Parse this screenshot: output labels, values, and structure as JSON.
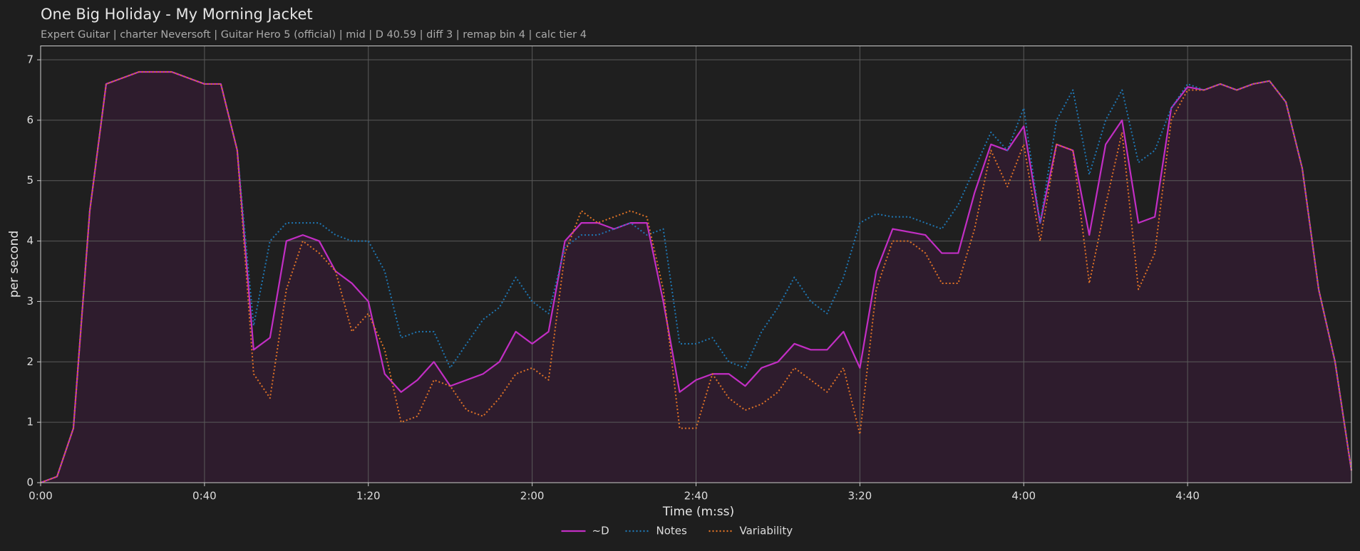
{
  "chart_data": {
    "type": "line",
    "title": "One Big Holiday - My Morning Jacket",
    "subtitle": "Expert Guitar  |  charter Neversoft  |  Guitar Hero 5 (official)  |  mid  |  D 40.59  |  diff 3  |  remap bin 4  |  calc tier 4",
    "x_label": "Time (m:ss)",
    "y_label": "per second",
    "x": [
      0,
      4,
      8,
      12,
      16,
      20,
      24,
      28,
      32,
      36,
      40,
      44,
      48,
      52,
      56,
      60,
      64,
      68,
      72,
      76,
      80,
      84,
      88,
      92,
      96,
      100,
      104,
      108,
      112,
      116,
      120,
      124,
      128,
      132,
      136,
      140,
      144,
      148,
      152,
      156,
      160,
      164,
      168,
      172,
      176,
      180,
      184,
      188,
      192,
      196,
      200,
      204,
      208,
      212,
      216,
      220,
      224,
      228,
      232,
      236,
      240,
      244,
      248,
      252,
      256,
      260,
      264,
      268,
      272,
      276,
      280,
      284,
      288,
      292,
      296,
      300,
      304,
      308,
      312,
      316,
      320
    ],
    "series": [
      {
        "name": "~D",
        "color": "#c22ec4",
        "linestyle": "solid",
        "fill_color": "#2e1c2d",
        "values": [
          0.0,
          0.1,
          0.9,
          4.5,
          6.6,
          6.7,
          6.8,
          6.8,
          6.8,
          6.7,
          6.6,
          6.6,
          5.5,
          2.2,
          2.4,
          4.0,
          4.1,
          4.0,
          3.5,
          3.3,
          3.0,
          1.8,
          1.5,
          1.7,
          2.0,
          1.6,
          1.7,
          1.8,
          2.0,
          2.5,
          2.3,
          2.5,
          4.0,
          4.3,
          4.3,
          4.2,
          4.3,
          4.3,
          3.0,
          1.5,
          1.7,
          1.8,
          1.8,
          1.6,
          1.9,
          2.0,
          2.3,
          2.2,
          2.2,
          2.5,
          1.9,
          3.5,
          4.2,
          4.15,
          4.1,
          3.8,
          3.8,
          4.8,
          5.6,
          5.5,
          5.9,
          4.3,
          5.6,
          5.5,
          4.1,
          5.6,
          6.0,
          4.3,
          4.4,
          6.2,
          6.55,
          6.5,
          6.6,
          6.5,
          6.6,
          6.65,
          6.3,
          5.2,
          3.2,
          2.0,
          0.2
        ]
      },
      {
        "name": "Notes",
        "color": "#1f77b4",
        "linestyle": "dotted",
        "values": [
          0.0,
          0.1,
          0.9,
          4.5,
          6.6,
          6.7,
          6.8,
          6.8,
          6.8,
          6.7,
          6.6,
          6.6,
          5.5,
          2.6,
          4.0,
          4.3,
          4.3,
          4.3,
          4.1,
          4.0,
          4.0,
          3.5,
          2.4,
          2.5,
          2.5,
          1.9,
          2.3,
          2.7,
          2.9,
          3.4,
          3.0,
          2.8,
          3.9,
          4.1,
          4.1,
          4.2,
          4.3,
          4.1,
          4.2,
          2.3,
          2.3,
          2.4,
          2.0,
          1.9,
          2.5,
          2.9,
          3.4,
          3.0,
          2.8,
          3.4,
          4.3,
          4.45,
          4.4,
          4.4,
          4.3,
          4.2,
          4.6,
          5.2,
          5.8,
          5.5,
          6.2,
          4.3,
          6.0,
          6.5,
          5.1,
          6.0,
          6.5,
          5.3,
          5.5,
          6.2,
          6.6,
          6.5,
          6.6,
          6.5,
          6.6,
          6.65,
          6.3,
          5.2,
          3.2,
          2.0,
          0.2
        ]
      },
      {
        "name": "Variability",
        "color": "#e07326",
        "linestyle": "dotted",
        "values": [
          0.0,
          0.1,
          0.9,
          4.5,
          6.6,
          6.7,
          6.8,
          6.8,
          6.8,
          6.7,
          6.6,
          6.6,
          5.5,
          1.8,
          1.4,
          3.2,
          4.0,
          3.8,
          3.5,
          2.5,
          2.8,
          2.2,
          1.0,
          1.1,
          1.7,
          1.6,
          1.2,
          1.1,
          1.4,
          1.8,
          1.9,
          1.7,
          3.8,
          4.5,
          4.3,
          4.4,
          4.5,
          4.4,
          3.2,
          0.9,
          0.9,
          1.8,
          1.4,
          1.2,
          1.3,
          1.5,
          1.9,
          1.7,
          1.5,
          1.9,
          0.8,
          3.2,
          4.0,
          4.0,
          3.8,
          3.3,
          3.3,
          4.2,
          5.5,
          4.9,
          5.6,
          4.0,
          5.6,
          5.5,
          3.3,
          4.6,
          5.8,
          3.2,
          3.8,
          6.0,
          6.5,
          6.5,
          6.6,
          6.5,
          6.6,
          6.65,
          6.3,
          5.2,
          3.2,
          2.0,
          0.2
        ]
      }
    ],
    "xlim": [
      0,
      320
    ],
    "xticks": [
      {
        "value": 0,
        "label": "0:00"
      },
      {
        "value": 40,
        "label": "0:40"
      },
      {
        "value": 80,
        "label": "1:20"
      },
      {
        "value": 120,
        "label": "2:00"
      },
      {
        "value": 160,
        "label": "2:40"
      },
      {
        "value": 200,
        "label": "3:20"
      },
      {
        "value": 240,
        "label": "4:00"
      },
      {
        "value": 280,
        "label": "4:40"
      }
    ],
    "ylim": [
      0,
      7.23
    ],
    "yticks": [
      0,
      1,
      2,
      3,
      4,
      5,
      6,
      7
    ],
    "grid": true,
    "legend": "bottom"
  }
}
